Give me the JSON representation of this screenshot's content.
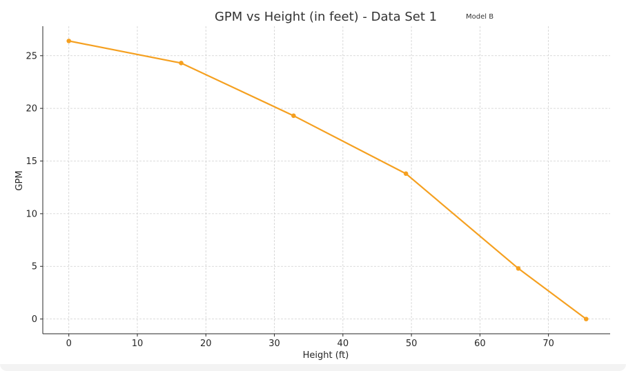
{
  "chart_data": {
    "type": "line",
    "title": "GPM vs Height (in feet) - Data Set 1",
    "annotation": "Model B",
    "xlabel": "Height (ft)",
    "ylabel": "GPM",
    "xlim": [
      -3.8,
      79
    ],
    "ylim": [
      -1.4,
      27.8
    ],
    "xticks": [
      0,
      10,
      20,
      30,
      40,
      50,
      60,
      70
    ],
    "yticks": [
      0,
      5,
      10,
      15,
      20,
      25
    ],
    "grid": true,
    "series": [
      {
        "color": "#f5a020",
        "x": [
          0,
          16.4,
          32.8,
          49.2,
          65.6,
          75.5
        ],
        "y": [
          26.4,
          24.3,
          19.3,
          13.8,
          4.8,
          0
        ]
      }
    ]
  }
}
